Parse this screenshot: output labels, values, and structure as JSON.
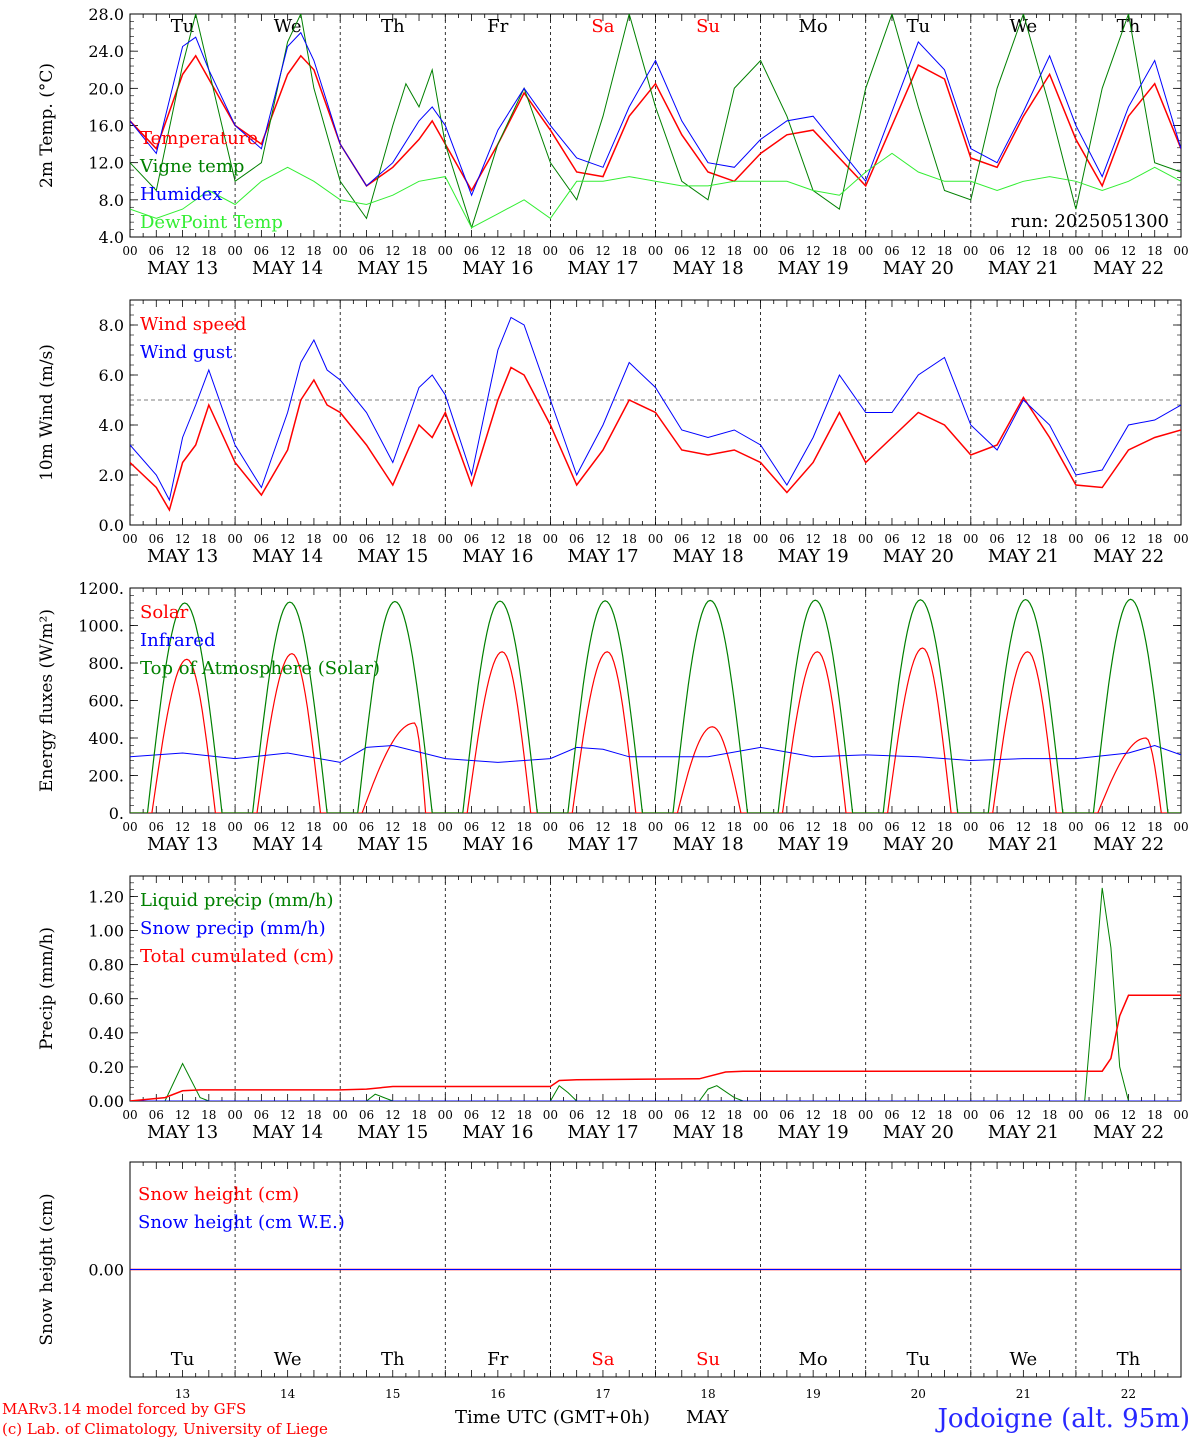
{
  "footer": {
    "credit_line1": "MARv3.14 model forced by GFS",
    "credit_line2": "(c) Lab. of Climatology, University of Liege",
    "xlabel": "Time UTC (GMT+0h)",
    "month": "MAY",
    "station": "Jodoigne (alt. 95m)"
  },
  "colors": {
    "red": "#ff0000",
    "blue": "#0000ff",
    "green": "#008000",
    "light_green": "#33ee33",
    "weekend": "#ff0000",
    "axis": "#000000"
  },
  "time_axis": {
    "hour_ticks": [
      "00",
      "06",
      "12",
      "18"
    ],
    "final_tick": "00",
    "dates": [
      "MAY 13",
      "MAY 14",
      "MAY 15",
      "MAY 16",
      "MAY 17",
      "MAY 18",
      "MAY 19",
      "MAY 20",
      "MAY 21",
      "MAY 22"
    ],
    "weekdays": [
      "Tu",
      "We",
      "Th",
      "Fr",
      "Sa",
      "Su",
      "Mo",
      "Tu",
      "We",
      "Th"
    ],
    "weekend_days": [
      false,
      false,
      false,
      false,
      true,
      true,
      false,
      false,
      false,
      false
    ],
    "day_numbers": [
      "13",
      "14",
      "15",
      "16",
      "17",
      "18",
      "19",
      "20",
      "21",
      "22"
    ]
  },
  "chart_data": [
    {
      "type": "line",
      "ylabel": "2m Temp. (°C)",
      "ylim": [
        4,
        28
      ],
      "yticks": [
        "4.0",
        "8.0",
        "12.0",
        "16.0",
        "20.0",
        "24.0",
        "28.0"
      ],
      "annotation": "run: 2025051300",
      "x_unit": "hours since MAY 13 00 UTC",
      "series": [
        {
          "name": "Temperature",
          "color": "#ff0000",
          "x": [
            0,
            6,
            12,
            15,
            18,
            24,
            30,
            36,
            39,
            42,
            48,
            54,
            60,
            66,
            69,
            72,
            78,
            84,
            90,
            96,
            102,
            108,
            114,
            120,
            126,
            132,
            138,
            144,
            150,
            156,
            162,
            168,
            174,
            180,
            186,
            192,
            198,
            204,
            210,
            216,
            222,
            228,
            234,
            240
          ],
          "y": [
            16.5,
            13.5,
            21.5,
            23.5,
            21,
            16,
            14,
            21.5,
            23.5,
            22,
            14,
            9.5,
            11.5,
            14.5,
            16.5,
            14,
            9,
            14,
            19.5,
            15.5,
            11,
            10.5,
            17,
            20.5,
            15,
            11,
            10,
            13,
            15,
            15.5,
            12.5,
            9.5,
            16,
            22.5,
            21,
            12.5,
            11.5,
            17,
            21.5,
            14.5,
            9.5,
            17,
            20.5,
            13.5
          ]
        },
        {
          "name": "Vigne temp",
          "color": "#008000",
          "x": [
            0,
            6,
            12,
            15,
            18,
            24,
            30,
            36,
            39,
            42,
            48,
            54,
            60,
            63,
            66,
            69,
            72,
            78,
            84,
            90,
            96,
            102,
            108,
            114,
            120,
            126,
            132,
            138,
            144,
            150,
            156,
            162,
            168,
            174,
            180,
            186,
            192,
            198,
            204,
            210,
            216,
            222,
            228,
            234,
            240
          ],
          "y": [
            12,
            9,
            22.5,
            28,
            22,
            10,
            12,
            25,
            28,
            20,
            10,
            6,
            16,
            20.5,
            18,
            22,
            14,
            5,
            14,
            20,
            12,
            8,
            17,
            28,
            18,
            10,
            8,
            20,
            23,
            17,
            9,
            7,
            20,
            28,
            18,
            9,
            8,
            20,
            28,
            18,
            7,
            20,
            28,
            12,
            11
          ]
        },
        {
          "name": "Humidex",
          "color": "#0000ff",
          "x": [
            0,
            6,
            12,
            15,
            18,
            24,
            30,
            36,
            39,
            42,
            48,
            54,
            60,
            66,
            69,
            72,
            78,
            84,
            90,
            96,
            102,
            108,
            114,
            120,
            126,
            132,
            138,
            144,
            150,
            156,
            162,
            168,
            174,
            180,
            186,
            192,
            198,
            204,
            210,
            216,
            222,
            228,
            234,
            240
          ],
          "y": [
            16.5,
            13,
            24.5,
            25.5,
            22,
            16,
            13.5,
            24.5,
            26,
            23,
            14,
            9.5,
            12,
            16.5,
            18,
            16,
            8.5,
            15.5,
            20,
            16,
            12.5,
            11.5,
            18,
            23,
            16.5,
            12,
            11.5,
            14.5,
            16.5,
            17,
            13.5,
            10,
            17.5,
            25,
            22,
            13.5,
            12,
            17.5,
            23.5,
            16,
            10.5,
            18,
            23,
            13.5
          ]
        },
        {
          "name": "DewPoint Temp",
          "color": "#33ee33",
          "x": [
            0,
            6,
            12,
            18,
            24,
            30,
            36,
            42,
            48,
            54,
            60,
            66,
            72,
            78,
            84,
            90,
            96,
            102,
            108,
            114,
            120,
            126,
            132,
            138,
            144,
            150,
            156,
            162,
            168,
            174,
            180,
            186,
            192,
            198,
            204,
            210,
            216,
            222,
            228,
            234,
            240
          ],
          "y": [
            7,
            6,
            7,
            9,
            7.5,
            10,
            11.5,
            10,
            8,
            7.5,
            8.5,
            10,
            10.5,
            5,
            6.5,
            8,
            6,
            10,
            10,
            10.5,
            10,
            9.5,
            9.5,
            10,
            10,
            10,
            9,
            8.5,
            11,
            13,
            11,
            10,
            10,
            9,
            10,
            10.5,
            10,
            9,
            10,
            11.5,
            10
          ]
        }
      ]
    },
    {
      "type": "line",
      "ylabel": "10m Wind (m/s)",
      "ylim": [
        0,
        9
      ],
      "yticks": [
        "0.0",
        "2.0",
        "4.0",
        "6.0",
        "8.0"
      ],
      "reference_line": 5,
      "x_unit": "hours since MAY 13 00 UTC",
      "series": [
        {
          "name": "Wind speed",
          "color": "#ff0000",
          "x": [
            0,
            6,
            9,
            12,
            15,
            18,
            24,
            30,
            36,
            39,
            42,
            45,
            48,
            54,
            60,
            66,
            69,
            72,
            78,
            84,
            87,
            90,
            96,
            102,
            108,
            114,
            120,
            126,
            132,
            138,
            144,
            150,
            156,
            162,
            168,
            174,
            180,
            186,
            192,
            198,
            204,
            210,
            216,
            222,
            228,
            234,
            240
          ],
          "y": [
            2.5,
            1.5,
            0.6,
            2.5,
            3.2,
            4.8,
            2.5,
            1.2,
            3,
            5,
            5.8,
            4.8,
            4.5,
            3.2,
            1.6,
            4,
            3.5,
            4.5,
            1.6,
            5,
            6.3,
            6,
            4,
            1.6,
            3,
            5,
            4.5,
            3,
            2.8,
            3,
            2.5,
            1.3,
            2.5,
            4.5,
            2.5,
            3.5,
            4.5,
            4,
            2.8,
            3.2,
            5.1,
            3.5,
            1.6,
            1.5,
            3,
            3.5,
            3.8
          ]
        },
        {
          "name": "Wind gust",
          "color": "#0000ff",
          "x": [
            0,
            6,
            9,
            12,
            15,
            18,
            24,
            30,
            36,
            39,
            42,
            45,
            48,
            54,
            60,
            66,
            69,
            72,
            78,
            84,
            87,
            90,
            96,
            102,
            108,
            114,
            120,
            126,
            132,
            138,
            144,
            150,
            156,
            162,
            168,
            174,
            180,
            186,
            192,
            198,
            204,
            210,
            216,
            222,
            228,
            234,
            240
          ],
          "y": [
            3.2,
            2,
            1,
            3.5,
            4.8,
            6.2,
            3.2,
            1.5,
            4.5,
            6.5,
            7.4,
            6.2,
            5.8,
            4.5,
            2.5,
            5.5,
            6,
            5.2,
            2,
            7,
            8.3,
            8,
            5,
            2,
            4,
            6.5,
            5.5,
            3.8,
            3.5,
            3.8,
            3.2,
            1.6,
            3.5,
            6,
            4.5,
            4.5,
            6,
            6.7,
            4,
            3,
            5,
            4,
            2,
            2.2,
            4,
            4.2,
            4.8
          ]
        }
      ]
    },
    {
      "type": "line",
      "ylabel": "Energy fluxes (W/m²)",
      "ylim": [
        0,
        1200
      ],
      "yticks": [
        "0.",
        "200.",
        "400.",
        "600.",
        "800.",
        "1000.",
        "1200."
      ],
      "x_unit": "hours since MAY 13 00 UTC",
      "series": [
        {
          "name": "Solar",
          "color": "#ff0000",
          "daily_peak": [
            820,
            850,
            480,
            860,
            860,
            460,
            860,
            880,
            860,
            400
          ],
          "peak_hour": [
            13,
            13,
            17,
            13,
            13,
            13,
            13,
            13,
            13,
            16
          ]
        },
        {
          "name": "Infrared",
          "color": "#0000ff",
          "x": [
            0,
            12,
            24,
            36,
            48,
            54,
            60,
            72,
            84,
            96,
            102,
            108,
            114,
            120,
            132,
            144,
            156,
            168,
            180,
            192,
            204,
            216,
            228,
            234,
            240
          ],
          "y": [
            300,
            320,
            290,
            320,
            270,
            350,
            360,
            290,
            270,
            290,
            350,
            340,
            300,
            300,
            300,
            350,
            300,
            310,
            300,
            280,
            290,
            290,
            320,
            360,
            310
          ]
        },
        {
          "name": "Top of Atmosphere (Solar)",
          "color": "#008000",
          "daily_peak": [
            1120,
            1125,
            1128,
            1130,
            1132,
            1134,
            1135,
            1137,
            1138,
            1140
          ]
        }
      ]
    },
    {
      "type": "line",
      "ylabel": "Precip (mm/h)",
      "ylim": [
        0,
        1.32
      ],
      "yticks": [
        "0.00",
        "0.20",
        "0.40",
        "0.60",
        "0.80",
        "1.00",
        "1.20"
      ],
      "x_unit": "hours since MAY 13 00 UTC",
      "series": [
        {
          "name": "Liquid precip (mm/h)",
          "color": "#008000",
          "x": [
            0,
            8,
            12,
            16,
            18,
            54,
            56,
            58,
            60,
            96,
            98,
            100,
            102,
            130,
            132,
            134,
            138,
            140,
            218,
            220,
            222,
            224,
            226,
            228,
            230,
            240
          ],
          "y": [
            0,
            0,
            0.22,
            0.02,
            0,
            0,
            0.04,
            0.02,
            0,
            0,
            0.09,
            0.05,
            0,
            0,
            0.07,
            0.09,
            0.02,
            0,
            0,
            0.6,
            1.25,
            0.9,
            0.2,
            0,
            0,
            0
          ]
        },
        {
          "name": "Snow precip (mm/h)",
          "color": "#0000ff",
          "x": [
            0,
            240
          ],
          "y": [
            0,
            0
          ]
        },
        {
          "name": "Total cumulated (cm)",
          "color": "#ff0000",
          "x": [
            0,
            8,
            12,
            16,
            48,
            54,
            60,
            96,
            98,
            102,
            130,
            136,
            140,
            222,
            224,
            226,
            228,
            240
          ],
          "y": [
            0,
            0.02,
            0.06,
            0.065,
            0.065,
            0.07,
            0.085,
            0.085,
            0.12,
            0.125,
            0.13,
            0.17,
            0.175,
            0.175,
            0.25,
            0.5,
            0.62,
            0.62
          ]
        }
      ]
    },
    {
      "type": "line",
      "ylabel": "Snow height (cm)",
      "ytick": "0.00",
      "x_unit": "hours since MAY 13 00 UTC",
      "series": [
        {
          "name": "Snow height (cm)",
          "color": "#ff0000",
          "x": [
            0,
            240
          ],
          "y": [
            0,
            0
          ]
        },
        {
          "name": "Snow height (cm W.E.)",
          "color": "#0000ff",
          "x": [
            0,
            240
          ],
          "y": [
            0,
            0
          ]
        }
      ]
    }
  ]
}
